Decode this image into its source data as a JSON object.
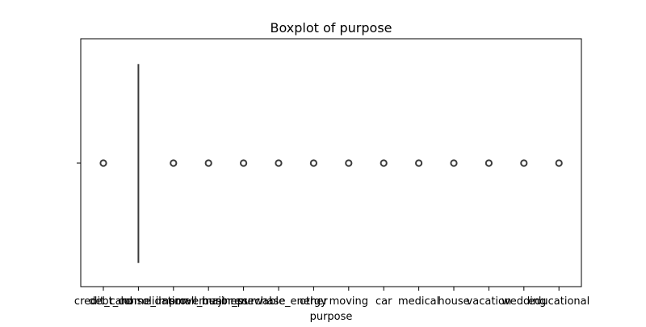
{
  "chart_data": {
    "type": "boxplot",
    "title": "Boxplot of purpose",
    "xlabel": "purpose",
    "ylabel": "",
    "orientation": "horizontal",
    "categories": [
      "credit_card",
      "debt_consolidation",
      "home_improvement",
      "small_business",
      "major_purchase",
      "renewable_energy",
      "other",
      "moving",
      "car",
      "medical",
      "house",
      "vacation",
      "wedding",
      "educational"
    ],
    "box": {
      "whisker_low": "debt_consolidation",
      "q1": "debt_consolidation",
      "median": "debt_consolidation",
      "q3": "debt_consolidation",
      "whisker_high": "debt_consolidation"
    },
    "outliers": [
      "credit_card",
      "home_improvement",
      "small_business",
      "major_purchase",
      "renewable_energy",
      "other",
      "moving",
      "car",
      "medical",
      "house",
      "vacation",
      "wedding",
      "educational"
    ],
    "grid": false,
    "legend": "none",
    "colors": {
      "line": "#3b3b3b",
      "frame": "#000000",
      "outlier_edge": "#3b3b3b"
    }
  }
}
